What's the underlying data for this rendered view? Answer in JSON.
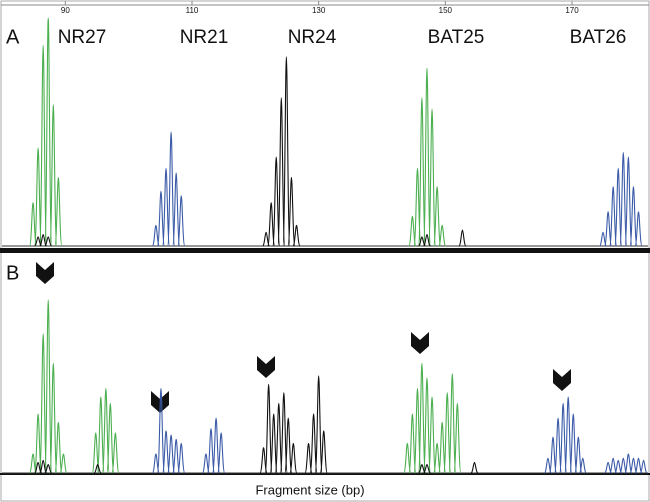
{
  "chart_data": {
    "type": "electropherogram",
    "xlim": [
      80,
      182
    ],
    "xticks": [
      90,
      110,
      130,
      150,
      170
    ],
    "ylim": [
      0,
      100
    ],
    "xlabel": "Fragment size (bp)",
    "panels": [
      {
        "label": "A",
        "markers": [
          "NR27",
          "NR21",
          "NR24",
          "BAT25",
          "BAT26"
        ],
        "series": [
          {
            "color": "#4caf50",
            "x": [
              84.9,
              85.7,
              86.5,
              87.3,
              88.1,
              88.9,
              144.8,
              145.6,
              146.3,
              147.1,
              147.9,
              148.7,
              149.5
            ],
            "values": [
              19,
              43,
              88,
              100,
              62,
              30,
              13,
              34,
              65,
              78,
              60,
              26,
              9
            ]
          },
          {
            "color": "#3b5ba8",
            "x": [
              104.3,
              105.1,
              105.9,
              106.7,
              107.5,
              108.3,
              174.9,
              175.7,
              176.5,
              177.3,
              178.1,
              178.9,
              179.7,
              180.5
            ],
            "values": [
              9,
              24,
              34,
              50,
              32,
              22,
              6,
              15,
              26,
              34,
              41,
              39,
              26,
              15
            ]
          },
          {
            "color": "#111111",
            "x": [
              85.7,
              86.5,
              87.3,
              121.7,
              122.5,
              123.3,
              124.1,
              124.9,
              125.7,
              126.5,
              146.3,
              147.1,
              152.7
            ],
            "values": [
              4,
              5,
              4,
              6,
              19,
              39,
              65,
              83,
              30,
              9,
              4,
              5,
              7
            ]
          }
        ]
      },
      {
        "label": "B",
        "series": [
          {
            "color": "#4caf50",
            "x": [
              84.9,
              85.7,
              86.5,
              87.3,
              88.1,
              88.9,
              89.7,
              94.8,
              95.6,
              96.4,
              97.1,
              97.9,
              144.0,
              144.8,
              145.6,
              146.3,
              147.1,
              147.9,
              148.7,
              149.5,
              150.3,
              151.1,
              151.9
            ],
            "values": [
              9,
              28,
              66,
              82,
              52,
              24,
              9,
              19,
              36,
              40,
              33,
              19,
              14,
              28,
              40,
              52,
              45,
              36,
              14,
              24,
              38,
              47,
              33
            ]
          },
          {
            "color": "#3b5ba8",
            "x": [
              104.3,
              105.1,
              105.9,
              106.7,
              107.5,
              108.3,
              112.2,
              113.0,
              113.8,
              114.6,
              166.2,
              167.0,
              167.8,
              168.6,
              169.4,
              170.2,
              171.0,
              171.7,
              175.7,
              176.5,
              177.3,
              178.1,
              178.9,
              179.7,
              180.5,
              181.3
            ],
            "values": [
              9,
              40,
              20,
              18,
              16,
              14,
              9,
              21,
              26,
              19,
              7,
              17,
              26,
              33,
              36,
              28,
              17,
              7,
              5,
              7,
              6,
              7,
              9,
              7,
              7,
              6
            ]
          },
          {
            "color": "#111111",
            "x": [
              85.7,
              86.5,
              87.3,
              95.1,
              121.3,
              122.1,
              122.9,
              123.7,
              124.5,
              125.2,
              126.0,
              128.4,
              129.2,
              130.0,
              130.8,
              146.3,
              147.1,
              154.6
            ],
            "values": [
              5,
              6,
              4,
              4,
              12,
              42,
              28,
              33,
              38,
              26,
              14,
              14,
              28,
              46,
              20,
              4,
              4,
              5
            ]
          }
        ]
      }
    ]
  }
}
